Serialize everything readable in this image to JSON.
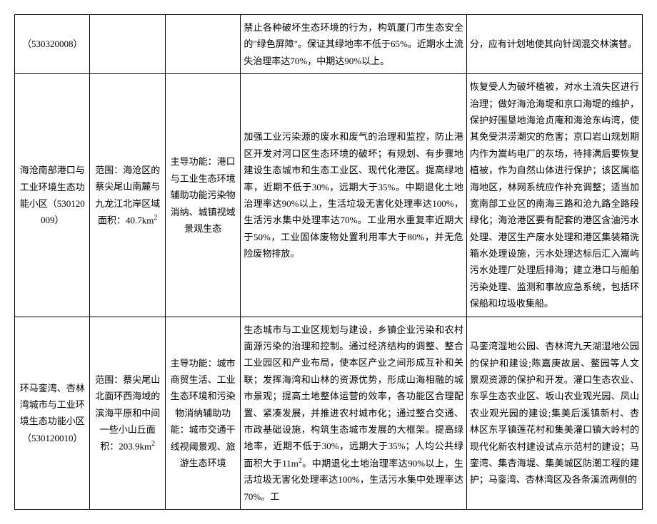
{
  "table": {
    "border_color": "#000000",
    "background_color": "#ffffff",
    "text_color": "#000000",
    "font_family": "SimSun",
    "font_size": 13,
    "line_height": 1.8,
    "rows": [
      {
        "c1": "（530320008）",
        "c2": "",
        "c3": "",
        "c4": "禁止各种破坏生态环境的行为，构筑厦门市生态安全的\"绿色屏障\"。保证其绿地率不低于65%。近期水土流失治理率达70%，中期达90%以上。",
        "c5": "分，应有计划地使其向针阔混交林演替。"
      },
      {
        "c1": "海沧南部港口与工业环境生态功能小区（530120009）",
        "c2_prefix": "范围：海沧区的蔡尖尾山南麓与九龙江北岸区域面积：40.7km",
        "c2_sup": "2",
        "c3": "主导功能：港口与工业生态环境辅助功能污染物消纳、城镇视域景观生态",
        "c4": "加强工业污染源的废水和废气的治理和监控，防止港区开发对河口区生态环境的破坏；有规划、有步骤地建设生态城市和生态工业区、现代化港区。提高绿地率，近期不低于30%，远期大于35%。中期退化土地治理率达90%以上，生活垃圾无害化处理率达100%，生活污水集中处理率达70%。工业用水重复率近期大于50%，工业固体废物处置利用率大于80%，并无危险废物排放。",
        "c5": "恢复受人为破坏植被，对水土流失区进行治理；做好海沧海堤和京口海堤的维护，保护好围垦地海沧贞庵和海沧东屿湾，使其免受洪涝潮灾的危害；京口岩山规划期内作为嵩屿电厂的灰场，待排满后要恢复植被，作为自然山体进行保护；该区属临海地区，林网系统应作补充调整；适当加宽南部工业区的南海三路和沧九路全路段绿化；海沧港区要有配套的港区含油污水处理、港区生产废水处理和港区集装箱洗箱水处理设施，污水处理达标后汇入嵩屿污水处理厂处理后排海；建立港口与船舶污染处理、监测和事故应急系统，包括环保船和垃圾收集船。"
      },
      {
        "c1": "环马銮湾、杏林湾城市与工业环境生态功能小区（530120010）",
        "c2_prefix": "范围：蔡尖尾山北面环西海域的滨海平原和中间一些小山丘面积：203.9km",
        "c2_sup": "2",
        "c3": "主导功能：城市商贸生活、工业生态环境和污染物消纳辅助功能：城市交通干线视阈景观、旅游生态环境",
        "c4_part1": "生态城市与工业区规划与建设，乡镇企业污染和农村面源污染的治理和控制。通过经济结构的调整、整合工业园区和产业布局，使本区产业之间形成互补和关联；发挥海湾和山林的资源优势，形成山海相融的城市景观；提高土地整体运营的效率，各功能区合理配置、紧凑发展，并推进农村城市化；通过整合交通、市政基础设施，构筑生态城市发展的大框架。提高绿地率，近期不低于30%，远期大于35%；人均公共绿面积大于11m",
        "c4_sup": "2",
        "c4_part2": "。中期退化土地治理率达90%以上，生活垃圾无害化处理率达100%，生活污水集中处理率达70%。工",
        "c5": "马銮湾湿地公园、杏林湾九天湖湿地公园的保护和建设;陈嘉庚故居、鳌园等人文景观资源的保护和开发。灌口生态农业、东孚生态农业区、坂山农业观光园、凤山农业观光园的建设;集美后溪镇新村、杏林区东孚镇莲花村和集美灌口镇大岭村的现代化新农村建设试点示范村的建设；马銮湾、集杏海堤、集美城区防潮工程的建护；马銮湾、杏林湾区及各条溪流两侧的"
      }
    ]
  }
}
